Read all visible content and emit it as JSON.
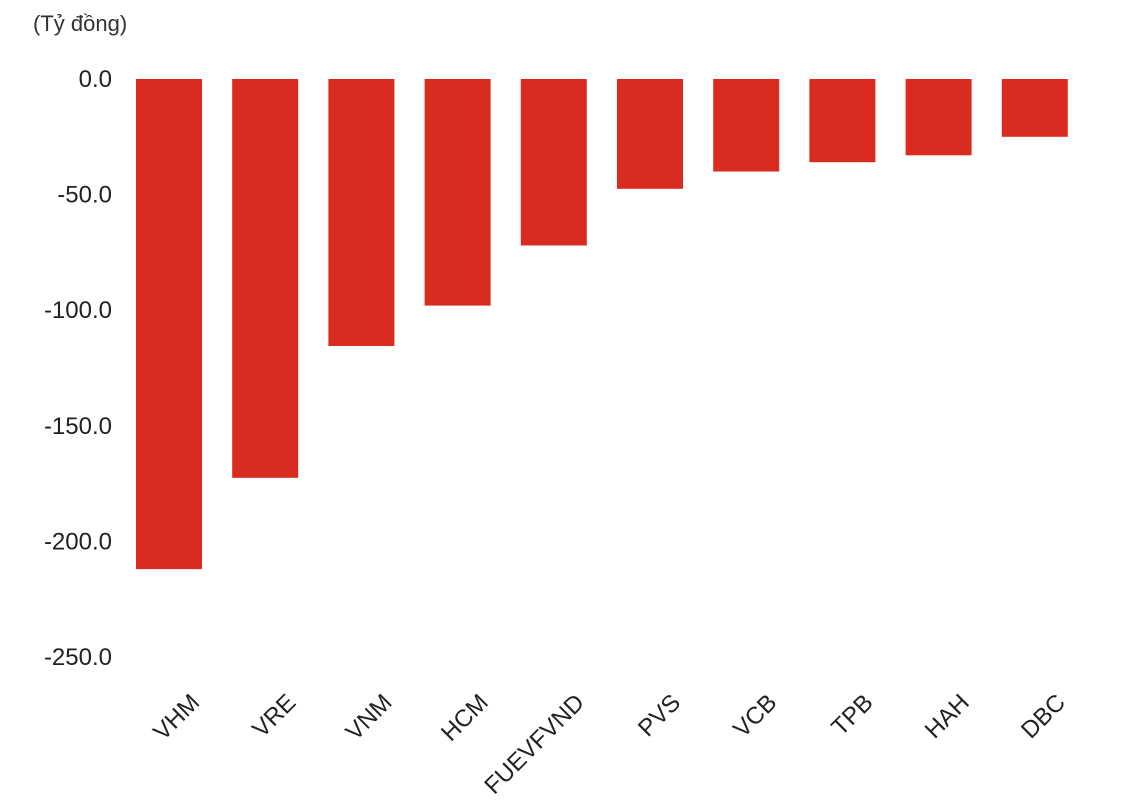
{
  "chart_data": {
    "type": "bar",
    "title": "",
    "ylabel": "(Tỷ đồng)",
    "xlabel": "",
    "categories": [
      "VHM",
      "VRE",
      "VNM",
      "HCM",
      "FUEVFVND",
      "PVS",
      "VCB",
      "TPB",
      "HAH",
      "DBC"
    ],
    "values": [
      -212.0,
      -172.5,
      -115.5,
      -98.0,
      -72.0,
      -47.5,
      -40.0,
      -36.0,
      -33.0,
      -25.0
    ],
    "ylim": [
      -250,
      0
    ],
    "yticks": [
      0,
      -50,
      -100,
      -150,
      -200,
      -250
    ],
    "ytick_labels": [
      "0.0",
      "-50.0",
      "-100.0",
      "-150.0",
      "-200.0",
      "-250.0"
    ],
    "grid": false,
    "legend": "none",
    "bar_color": "#d92b1f"
  }
}
